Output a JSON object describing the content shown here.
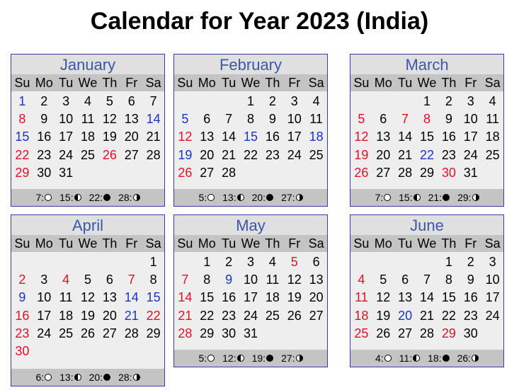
{
  "title": "Calendar for Year 2023 (India)",
  "weekdays": [
    "Su",
    "Mo",
    "Tu",
    "We",
    "Th",
    "Fr",
    "Sa"
  ],
  "colors": {
    "holiday_red": "#e0102a",
    "holiday_blue": "#1a33c8",
    "month_name": "#3d57a8",
    "border": "#3a3aa8"
  },
  "months": [
    {
      "name": "January",
      "weeks": [
        [
          {
            "d": "1",
            "c": "blue"
          },
          {
            "d": "2"
          },
          {
            "d": "3"
          },
          {
            "d": "4"
          },
          {
            "d": "5"
          },
          {
            "d": "6"
          },
          {
            "d": "7"
          }
        ],
        [
          {
            "d": "8",
            "c": "red"
          },
          {
            "d": "9"
          },
          {
            "d": "10"
          },
          {
            "d": "11"
          },
          {
            "d": "12"
          },
          {
            "d": "13"
          },
          {
            "d": "14",
            "c": "blue"
          }
        ],
        [
          {
            "d": "15",
            "c": "blue"
          },
          {
            "d": "16"
          },
          {
            "d": "17"
          },
          {
            "d": "18"
          },
          {
            "d": "19"
          },
          {
            "d": "20"
          },
          {
            "d": "21"
          }
        ],
        [
          {
            "d": "22",
            "c": "red"
          },
          {
            "d": "23"
          },
          {
            "d": "24"
          },
          {
            "d": "25"
          },
          {
            "d": "26",
            "c": "red"
          },
          {
            "d": "27"
          },
          {
            "d": "28"
          }
        ],
        [
          {
            "d": "29",
            "c": "red"
          },
          {
            "d": "30"
          },
          {
            "d": "31"
          },
          {
            "d": ""
          },
          {
            "d": ""
          },
          {
            "d": ""
          },
          {
            "d": ""
          }
        ]
      ],
      "moon": [
        {
          "day": "7:",
          "icon": "full-moon-icon"
        },
        {
          "day": "15:",
          "icon": "last-quarter-moon-icon"
        },
        {
          "day": "22:",
          "icon": "new-moon-icon"
        },
        {
          "day": "28:",
          "icon": "first-quarter-moon-icon"
        }
      ]
    },
    {
      "name": "February",
      "weeks": [
        [
          {
            "d": ""
          },
          {
            "d": ""
          },
          {
            "d": ""
          },
          {
            "d": "1"
          },
          {
            "d": "2"
          },
          {
            "d": "3"
          },
          {
            "d": "4"
          }
        ],
        [
          {
            "d": "5",
            "c": "blue"
          },
          {
            "d": "6"
          },
          {
            "d": "7"
          },
          {
            "d": "8"
          },
          {
            "d": "9"
          },
          {
            "d": "10"
          },
          {
            "d": "11"
          }
        ],
        [
          {
            "d": "12",
            "c": "red"
          },
          {
            "d": "13"
          },
          {
            "d": "14"
          },
          {
            "d": "15",
            "c": "blue"
          },
          {
            "d": "16"
          },
          {
            "d": "17"
          },
          {
            "d": "18",
            "c": "blue"
          }
        ],
        [
          {
            "d": "19",
            "c": "blue"
          },
          {
            "d": "20"
          },
          {
            "d": "21"
          },
          {
            "d": "22"
          },
          {
            "d": "23"
          },
          {
            "d": "24"
          },
          {
            "d": "25"
          }
        ],
        [
          {
            "d": "26",
            "c": "red"
          },
          {
            "d": "27"
          },
          {
            "d": "28"
          },
          {
            "d": ""
          },
          {
            "d": ""
          },
          {
            "d": ""
          },
          {
            "d": ""
          }
        ]
      ],
      "moon": [
        {
          "day": "5:",
          "icon": "full-moon-icon"
        },
        {
          "day": "13:",
          "icon": "last-quarter-moon-icon"
        },
        {
          "day": "20:",
          "icon": "new-moon-icon"
        },
        {
          "day": "27:",
          "icon": "first-quarter-moon-icon"
        }
      ]
    },
    {
      "name": "March",
      "weeks": [
        [
          {
            "d": ""
          },
          {
            "d": ""
          },
          {
            "d": ""
          },
          {
            "d": "1"
          },
          {
            "d": "2"
          },
          {
            "d": "3"
          },
          {
            "d": "4"
          }
        ],
        [
          {
            "d": "5",
            "c": "red"
          },
          {
            "d": "6"
          },
          {
            "d": "7",
            "c": "red"
          },
          {
            "d": "8",
            "c": "red"
          },
          {
            "d": "9"
          },
          {
            "d": "10"
          },
          {
            "d": "11"
          }
        ],
        [
          {
            "d": "12",
            "c": "red"
          },
          {
            "d": "13"
          },
          {
            "d": "14"
          },
          {
            "d": "15"
          },
          {
            "d": "16"
          },
          {
            "d": "17"
          },
          {
            "d": "18"
          }
        ],
        [
          {
            "d": "19",
            "c": "red"
          },
          {
            "d": "20"
          },
          {
            "d": "21"
          },
          {
            "d": "22",
            "c": "blue"
          },
          {
            "d": "23"
          },
          {
            "d": "24"
          },
          {
            "d": "25"
          }
        ],
        [
          {
            "d": "26",
            "c": "red"
          },
          {
            "d": "27"
          },
          {
            "d": "28"
          },
          {
            "d": "29"
          },
          {
            "d": "30",
            "c": "red"
          },
          {
            "d": "31"
          },
          {
            "d": ""
          }
        ]
      ],
      "moon": [
        {
          "day": "7:",
          "icon": "full-moon-icon"
        },
        {
          "day": "15:",
          "icon": "last-quarter-moon-icon"
        },
        {
          "day": "21:",
          "icon": "new-moon-icon"
        },
        {
          "day": "29:",
          "icon": "first-quarter-moon-icon"
        }
      ]
    },
    {
      "name": "April",
      "weeks": [
        [
          {
            "d": ""
          },
          {
            "d": ""
          },
          {
            "d": ""
          },
          {
            "d": ""
          },
          {
            "d": ""
          },
          {
            "d": ""
          },
          {
            "d": "1"
          }
        ],
        [
          {
            "d": "2",
            "c": "red"
          },
          {
            "d": "3"
          },
          {
            "d": "4",
            "c": "red"
          },
          {
            "d": "5"
          },
          {
            "d": "6"
          },
          {
            "d": "7",
            "c": "red"
          },
          {
            "d": "8"
          }
        ],
        [
          {
            "d": "9",
            "c": "blue"
          },
          {
            "d": "10"
          },
          {
            "d": "11"
          },
          {
            "d": "12"
          },
          {
            "d": "13"
          },
          {
            "d": "14",
            "c": "blue"
          },
          {
            "d": "15",
            "c": "blue"
          }
        ],
        [
          {
            "d": "16",
            "c": "red"
          },
          {
            "d": "17"
          },
          {
            "d": "18"
          },
          {
            "d": "19"
          },
          {
            "d": "20"
          },
          {
            "d": "21",
            "c": "blue"
          },
          {
            "d": "22",
            "c": "red"
          }
        ],
        [
          {
            "d": "23",
            "c": "red"
          },
          {
            "d": "24"
          },
          {
            "d": "25"
          },
          {
            "d": "26"
          },
          {
            "d": "27"
          },
          {
            "d": "28"
          },
          {
            "d": "29"
          }
        ],
        [
          {
            "d": "30",
            "c": "red"
          },
          {
            "d": ""
          },
          {
            "d": ""
          },
          {
            "d": ""
          },
          {
            "d": ""
          },
          {
            "d": ""
          },
          {
            "d": ""
          }
        ]
      ],
      "moon": [
        {
          "day": "6:",
          "icon": "full-moon-icon"
        },
        {
          "day": "13:",
          "icon": "last-quarter-moon-icon"
        },
        {
          "day": "20:",
          "icon": "new-moon-icon"
        },
        {
          "day": "28:",
          "icon": "first-quarter-moon-icon"
        }
      ]
    },
    {
      "name": "May",
      "weeks": [
        [
          {
            "d": ""
          },
          {
            "d": "1"
          },
          {
            "d": "2"
          },
          {
            "d": "3"
          },
          {
            "d": "4"
          },
          {
            "d": "5",
            "c": "red"
          },
          {
            "d": "6"
          }
        ],
        [
          {
            "d": "7",
            "c": "red"
          },
          {
            "d": "8"
          },
          {
            "d": "9",
            "c": "blue"
          },
          {
            "d": "10"
          },
          {
            "d": "11"
          },
          {
            "d": "12"
          },
          {
            "d": "13"
          }
        ],
        [
          {
            "d": "14",
            "c": "red"
          },
          {
            "d": "15"
          },
          {
            "d": "16"
          },
          {
            "d": "17"
          },
          {
            "d": "18"
          },
          {
            "d": "19"
          },
          {
            "d": "20"
          }
        ],
        [
          {
            "d": "21",
            "c": "red"
          },
          {
            "d": "22"
          },
          {
            "d": "23"
          },
          {
            "d": "24"
          },
          {
            "d": "25"
          },
          {
            "d": "26"
          },
          {
            "d": "27"
          }
        ],
        [
          {
            "d": "28",
            "c": "red"
          },
          {
            "d": "29"
          },
          {
            "d": "30"
          },
          {
            "d": "31"
          },
          {
            "d": ""
          },
          {
            "d": ""
          },
          {
            "d": ""
          }
        ]
      ],
      "moon": [
        {
          "day": "5:",
          "icon": "full-moon-icon"
        },
        {
          "day": "12:",
          "icon": "last-quarter-moon-icon"
        },
        {
          "day": "19:",
          "icon": "new-moon-icon"
        },
        {
          "day": "27:",
          "icon": "first-quarter-moon-icon"
        }
      ]
    },
    {
      "name": "June",
      "weeks": [
        [
          {
            "d": ""
          },
          {
            "d": ""
          },
          {
            "d": ""
          },
          {
            "d": ""
          },
          {
            "d": "1"
          },
          {
            "d": "2"
          },
          {
            "d": "3"
          }
        ],
        [
          {
            "d": "4",
            "c": "red"
          },
          {
            "d": "5"
          },
          {
            "d": "6"
          },
          {
            "d": "7"
          },
          {
            "d": "8"
          },
          {
            "d": "9"
          },
          {
            "d": "10"
          }
        ],
        [
          {
            "d": "11",
            "c": "red"
          },
          {
            "d": "12"
          },
          {
            "d": "13"
          },
          {
            "d": "14"
          },
          {
            "d": "15"
          },
          {
            "d": "16"
          },
          {
            "d": "17"
          }
        ],
        [
          {
            "d": "18",
            "c": "red"
          },
          {
            "d": "19"
          },
          {
            "d": "20",
            "c": "blue"
          },
          {
            "d": "21"
          },
          {
            "d": "22"
          },
          {
            "d": "23"
          },
          {
            "d": "24"
          }
        ],
        [
          {
            "d": "25",
            "c": "red"
          },
          {
            "d": "26"
          },
          {
            "d": "27"
          },
          {
            "d": "28"
          },
          {
            "d": "29",
            "c": "red"
          },
          {
            "d": "30"
          },
          {
            "d": ""
          }
        ]
      ],
      "moon": [
        {
          "day": "4:",
          "icon": "full-moon-icon"
        },
        {
          "day": "11:",
          "icon": "last-quarter-moon-icon"
        },
        {
          "day": "18:",
          "icon": "new-moon-icon"
        },
        {
          "day": "26:",
          "icon": "first-quarter-moon-icon"
        }
      ]
    }
  ]
}
